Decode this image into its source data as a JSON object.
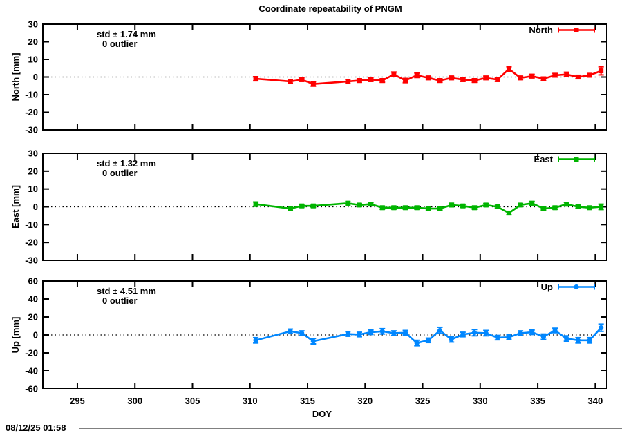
{
  "timestamp": "08/12/25 01:58",
  "chart_data": {
    "type": "line",
    "title": "Coordinate repeatability of PNGM",
    "x_label": "DOY",
    "x_range": [
      292,
      341
    ],
    "x_ticks": [
      295,
      300,
      305,
      310,
      315,
      320,
      325,
      330,
      335,
      340
    ],
    "grid": "zero-line-dotted-only",
    "legend_position": "top-right-inside",
    "x": [
      310.5,
      313.5,
      314.5,
      315.5,
      318.5,
      319.5,
      320.5,
      321.5,
      322.5,
      323.5,
      324.5,
      325.5,
      326.5,
      327.5,
      328.5,
      329.5,
      330.5,
      331.5,
      332.5,
      333.5,
      334.5,
      335.5,
      336.5,
      337.5,
      338.5,
      339.5,
      340.5
    ],
    "panels": [
      {
        "name": "North",
        "y_axis_label": "North [mm]",
        "std_label": "std ± 1.74 mm",
        "outlier_label": "0 outlier",
        "legend_label": "North",
        "color": "#ff0000",
        "marker": "square",
        "y_range": [
          -30,
          30
        ],
        "y_ticks": [
          -30,
          -20,
          -10,
          0,
          10,
          20,
          30
        ],
        "values": [
          -1,
          -2.5,
          -1.5,
          -4,
          -2.5,
          -2,
          -1.5,
          -2,
          1.5,
          -2,
          1,
          -0.5,
          -2,
          -0.5,
          -1.5,
          -2,
          -0.5,
          -1.5,
          4.5,
          -0.5,
          0.5,
          -1,
          1,
          1.5,
          0,
          1,
          3.5
        ],
        "errors": [
          1.2,
          1,
          1,
          1.2,
          1,
          1,
          1,
          1,
          1.3,
          1.2,
          1.3,
          1,
          1,
          1,
          1,
          1,
          1,
          1,
          1.3,
          1,
          1,
          1,
          1,
          1.2,
          1,
          1,
          2.3
        ]
      },
      {
        "name": "East",
        "y_axis_label": "East [mm]",
        "std_label": "std ± 1.32 mm",
        "outlier_label": "0 outlier",
        "legend_label": "East",
        "color": "#00b400",
        "marker": "square",
        "y_range": [
          -30,
          30
        ],
        "y_ticks": [
          -30,
          -20,
          -10,
          0,
          10,
          20,
          30
        ],
        "values": [
          1.5,
          -1,
          0.5,
          0.5,
          2,
          1,
          1.5,
          -0.5,
          -0.5,
          -0.5,
          -0.5,
          -1,
          -1,
          1,
          0.5,
          -0.5,
          1,
          0,
          -3.5,
          1,
          2,
          -1,
          -0.5,
          1.5,
          0,
          -0.5,
          0
        ],
        "errors": [
          1.2,
          0.8,
          0.8,
          0.8,
          1,
          0.8,
          0.8,
          0.8,
          0.8,
          0.8,
          0.8,
          0.8,
          0.8,
          1,
          0.8,
          0.8,
          0.8,
          0.8,
          1,
          0.8,
          1,
          0.8,
          0.8,
          1,
          0.8,
          0.8,
          1.5
        ]
      },
      {
        "name": "Up",
        "y_axis_label": "Up [mm]",
        "std_label": "std ± 4.51 mm",
        "outlier_label": "0 outlier",
        "legend_label": "Up",
        "color": "#0087ff",
        "marker": "circle",
        "y_range": [
          -60,
          60
        ],
        "y_ticks": [
          -60,
          -40,
          -20,
          0,
          20,
          40,
          60
        ],
        "values": [
          -6,
          4,
          2,
          -7,
          1,
          0.5,
          3,
          4,
          2,
          2.5,
          -9,
          -6,
          5,
          -5,
          0.5,
          2.5,
          2,
          -3,
          -2.5,
          2,
          3,
          -2,
          5,
          -4,
          -6,
          -6,
          8
        ],
        "errors": [
          3,
          2.5,
          2.5,
          3,
          2.5,
          2.5,
          2.5,
          3,
          2.5,
          2.5,
          3,
          2.5,
          3.5,
          3,
          2.5,
          3.5,
          3,
          2.5,
          2.5,
          2.5,
          2.5,
          3,
          2.5,
          3,
          3,
          3,
          4
        ]
      }
    ]
  }
}
